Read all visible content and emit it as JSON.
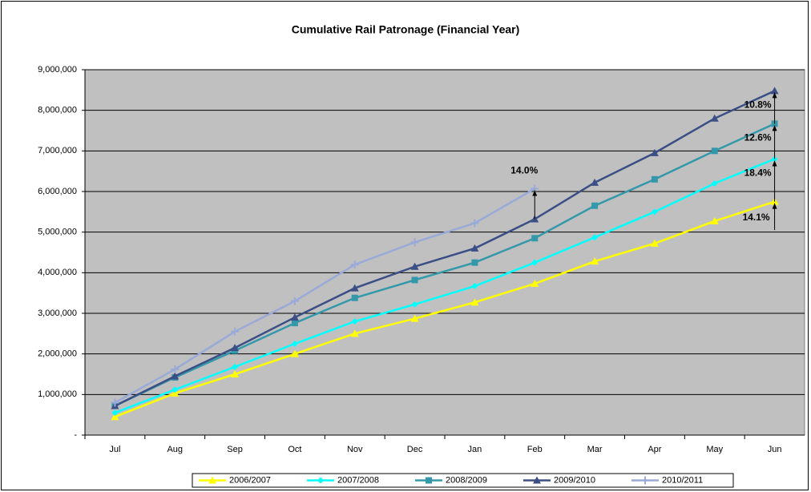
{
  "chart_data": {
    "type": "line",
    "title": "Cumulative Rail Patronage (Financial Year)",
    "categories": [
      "Jul",
      "Aug",
      "Sep",
      "Oct",
      "Nov",
      "Dec",
      "Jan",
      "Feb",
      "Mar",
      "Apr",
      "May",
      "Jun"
    ],
    "series": [
      {
        "name": "2006/2007",
        "color": "#ffff00",
        "marker": "triangle",
        "values": [
          450000,
          1030000,
          1500000,
          2000000,
          2500000,
          2870000,
          3270000,
          3730000,
          4280000,
          4720000,
          5270000,
          5750000
        ]
      },
      {
        "name": "2007/2008",
        "color": "#00ffff",
        "marker": "diamond",
        "values": [
          550000,
          1120000,
          1680000,
          2250000,
          2800000,
          3220000,
          3670000,
          4250000,
          4870000,
          5500000,
          6200000,
          6800000
        ]
      },
      {
        "name": "2008/2009",
        "color": "#3399aa",
        "marker": "square",
        "values": [
          720000,
          1420000,
          2080000,
          2760000,
          3380000,
          3820000,
          4250000,
          4850000,
          5650000,
          6300000,
          7000000,
          7670000
        ]
      },
      {
        "name": "2009/2010",
        "color": "#3b4f86",
        "marker": "triangle",
        "values": [
          720000,
          1450000,
          2150000,
          2900000,
          3620000,
          4150000,
          4600000,
          5320000,
          6220000,
          6950000,
          7800000,
          8480000
        ]
      },
      {
        "name": "2010/2011",
        "color": "#99aad8",
        "marker": "plus",
        "values": [
          800000,
          1620000,
          2550000,
          3300000,
          4200000,
          4750000,
          5220000,
          6070000,
          null,
          null,
          null,
          null
        ]
      }
    ],
    "annotations": [
      "14.0%",
      "10.8%",
      "12.6%",
      "18.4%",
      "14.1%"
    ],
    "ylim": [
      0,
      9000000
    ],
    "yticks": [
      {
        "value": 0,
        "label": "-"
      },
      {
        "value": 1000000,
        "label": "1,000,000"
      },
      {
        "value": 2000000,
        "label": "2,000,000"
      },
      {
        "value": 3000000,
        "label": "3,000,000"
      },
      {
        "value": 4000000,
        "label": "4,000,000"
      },
      {
        "value": 5000000,
        "label": "5,000,000"
      },
      {
        "value": 6000000,
        "label": "6,000,000"
      },
      {
        "value": 7000000,
        "label": "7,000,000"
      },
      {
        "value": 8000000,
        "label": "8,000,000"
      },
      {
        "value": 9000000,
        "label": "9,000,000"
      }
    ],
    "grid": true,
    "legend": "bottom"
  }
}
